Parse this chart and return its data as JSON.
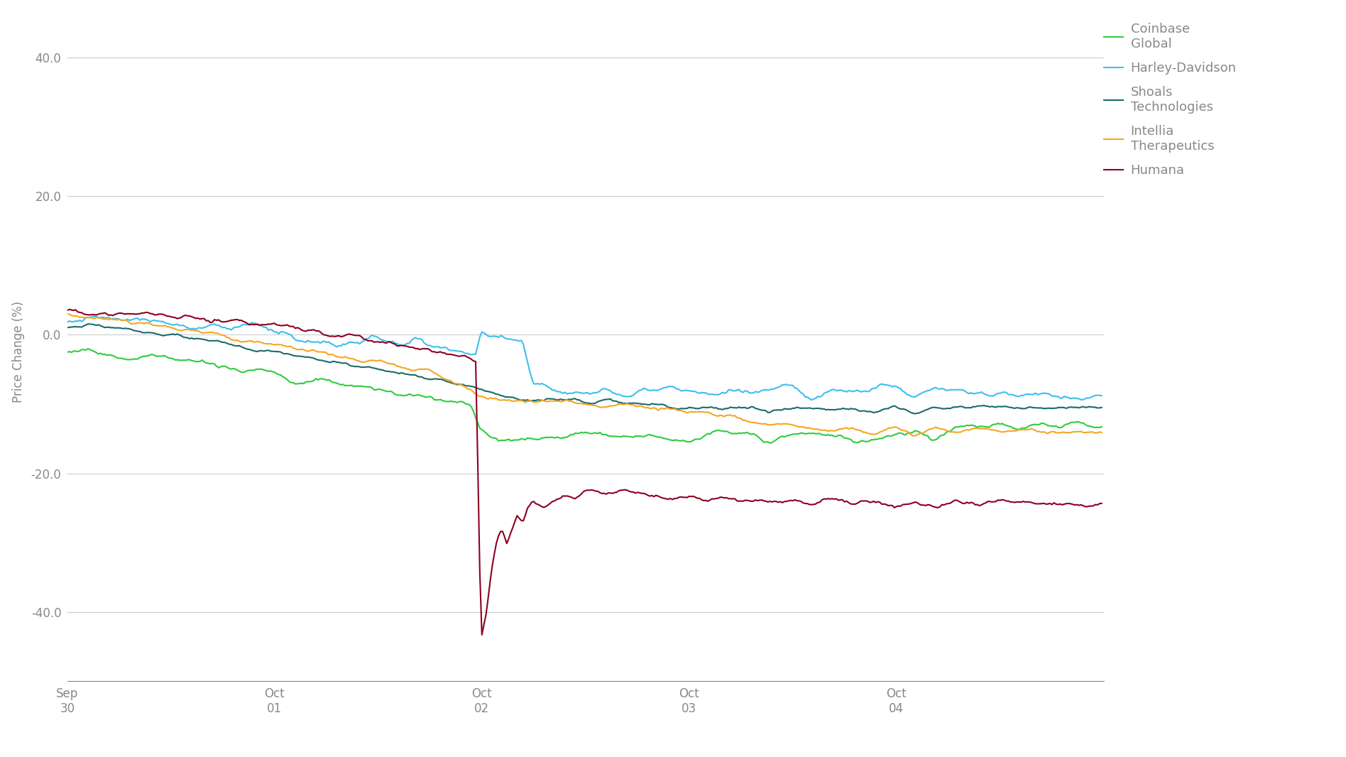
{
  "ylabel": "Price Change (%)",
  "yticks": [
    -40.0,
    -20.0,
    0.0,
    20.0,
    40.0
  ],
  "ylim": [
    -50,
    45
  ],
  "xlim": [
    0,
    500
  ],
  "bg_color": "#ffffff",
  "grid_color": "#cccccc",
  "series": [
    {
      "name": "Coinbase\nGlobal",
      "color": "#2ecc40",
      "lw": 1.5
    },
    {
      "name": "Harley-Davidson",
      "color": "#3dbfef",
      "lw": 1.5
    },
    {
      "name": "Shoals\nTechnologies",
      "color": "#1a6b6b",
      "lw": 1.5
    },
    {
      "name": "Intellia\nTherapeutics",
      "color": "#f5a623",
      "lw": 1.5
    },
    {
      "name": "Humana",
      "color": "#8b0022",
      "lw": 1.5
    }
  ],
  "legend_fontsize": 13,
  "axis_fontsize": 12,
  "tick_fontsize": 12
}
